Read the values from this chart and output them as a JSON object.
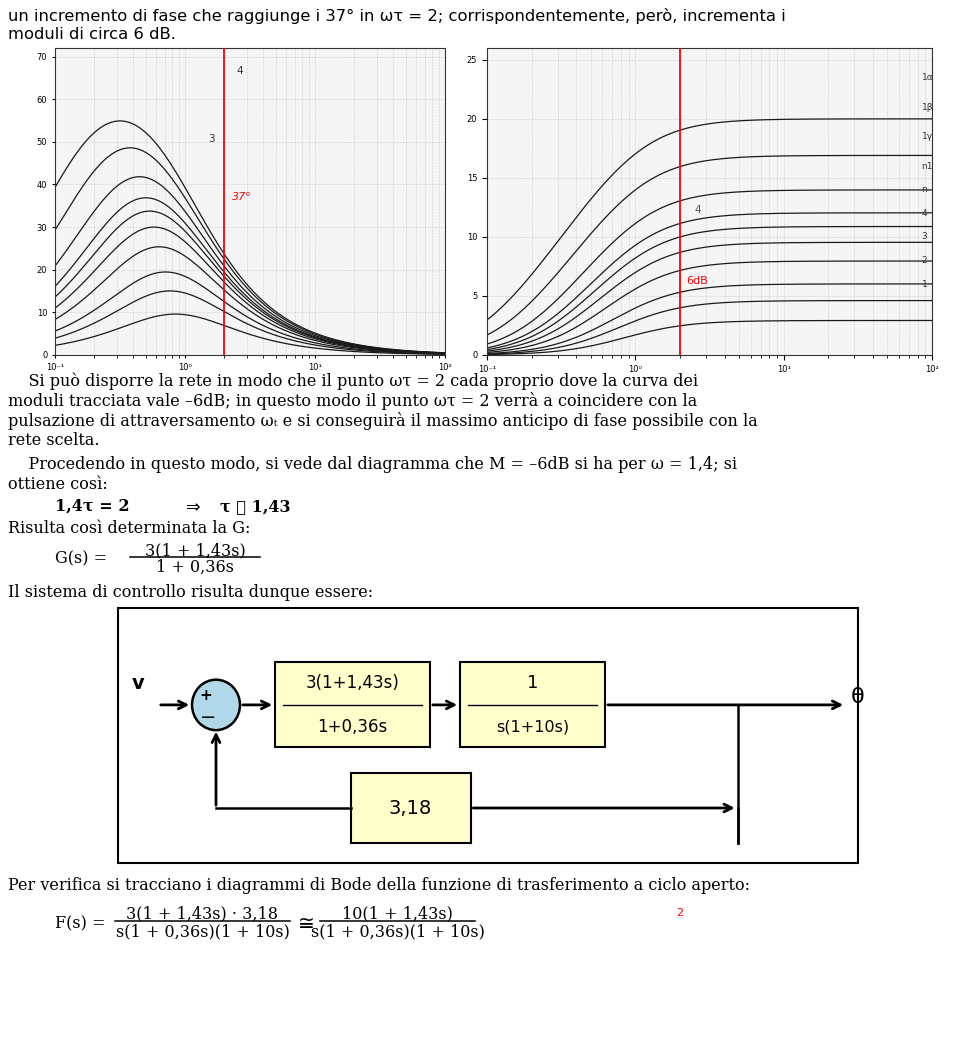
{
  "bg_color": "#ffffff",
  "text_color": "#000000",
  "box_fill": "#ffffcc",
  "box_edge": "#000000",
  "circle_fill": "#b0d8e8",
  "red_color": "#cc0000",
  "dark_gray": "#333333",
  "fig_w": 9.6,
  "fig_h": 10.37,
  "dpi": 100,
  "header_lines": [
    "un incremento di fase che raggiunge i 37° in ωτ = 2; corrispondentemente, però, incrementa i",
    "moduli di circa 6 dB."
  ],
  "para1_lines": [
    "    Si può disporre la rete in modo che il punto ωτ = 2 cada proprio dove la curva dei",
    "moduli tracciata vale –6dB; in questo modo il punto ωτ = 2 verrà a coincidere con la",
    "pulsazione di attraversamento ωₜ e si conseguirà il massimo anticipo di fase possibile con la",
    "rete scelta."
  ],
  "para2_lines": [
    "    Procedendo in questo modo, si vede dal diagramma che M = –6dB si ha per ω = 1,4; si",
    "ottiene così:"
  ],
  "eq1_parts": [
    "1,4τ = 2",
    "  ⇒  ",
    "τ ≅ 1,43"
  ],
  "risulta": "Risulta così determinata la G:",
  "gs_label": "G(s) =",
  "gs_num": "3(1 + 1,43s)",
  "gs_den": "1 + 0,36s",
  "system_label": "Il sistema di controllo risulta dunque essere:",
  "b1_num": "3(1+1,43s)",
  "b1_den": "1+0,36s",
  "b2_num": "1",
  "b2_den": "s(1+10s)",
  "b3_val": "3,18",
  "v_label": "v",
  "theta_label": "θ",
  "verify_line": "Per verifica si tracciano i diagrammi di Bode della funzione di trasferimento a ciclo aperto:",
  "fs_label": "F(s) =",
  "fn1": "3(1 + 1,43s) · 3,18",
  "fd1": "s(1 + 0,36s)(1 + 10s)",
  "approx_sym": "≅",
  "fn2": "10(1 + 1,43s)",
  "fd2": "s(1 + 0,36s)(1 + 10s)"
}
